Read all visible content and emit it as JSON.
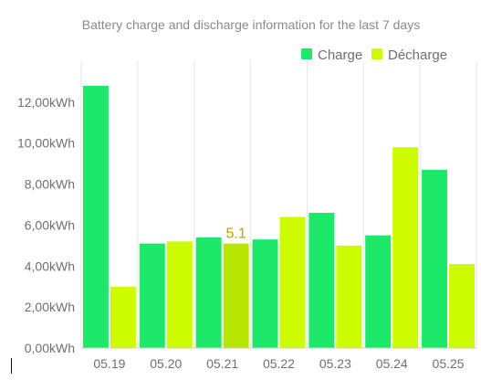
{
  "chart_data": {
    "type": "bar",
    "title": "Battery charge and discharge information for the last 7 days",
    "categories": [
      "05.19",
      "05.20",
      "05.21",
      "05.22",
      "05.23",
      "05.24",
      "05.25"
    ],
    "series": [
      {
        "name": "Charge",
        "color": "#1ee86a",
        "values": [
          12.8,
          5.1,
          5.4,
          5.3,
          6.6,
          5.5,
          8.7
        ]
      },
      {
        "name": "Décharge",
        "color": "#cdfc00",
        "values": [
          3.0,
          5.2,
          5.1,
          6.4,
          5.0,
          9.8,
          4.1
        ]
      }
    ],
    "highlight": {
      "series": 1,
      "category": 2,
      "label": "5.1",
      "color": "#b9e600"
    },
    "ylim": [
      0,
      14
    ],
    "yticks": [
      "0,00kWh",
      "2,00kWh",
      "4,00kWh",
      "6,00kWh",
      "8,00kWh",
      "10,00kWh",
      "12,00kWh"
    ],
    "ytick_values": [
      0,
      2,
      4,
      6,
      8,
      10,
      12
    ],
    "legend_position": "top-right",
    "grid": "vertical"
  }
}
